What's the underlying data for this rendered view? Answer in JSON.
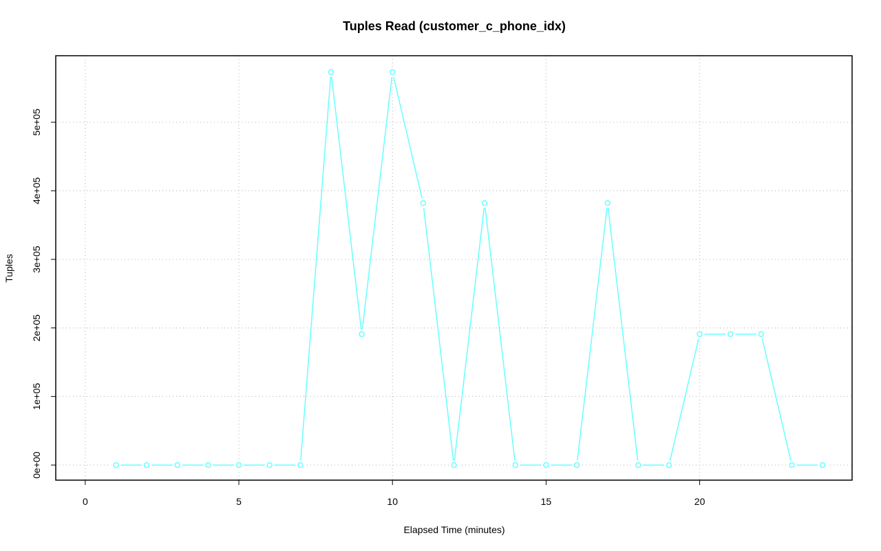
{
  "chart_data": {
    "type": "line",
    "title": "Tuples Read (customer_c_phone_idx)",
    "x_label": "Elapsed Time (minutes)",
    "y_label": "Tuples",
    "x": [
      1,
      2,
      3,
      4,
      5,
      6,
      7,
      8,
      9,
      10,
      11,
      12,
      13,
      14,
      15,
      16,
      17,
      18,
      19,
      20,
      21,
      22,
      23,
      24
    ],
    "series": [
      {
        "color": "#66ffff",
        "values": [
          0,
          0,
          0,
          0,
          0,
          0,
          0,
          573000,
          191000,
          573000,
          382000,
          0,
          382000,
          0,
          0,
          0,
          382000,
          0,
          0,
          191000,
          191000,
          191000,
          0,
          0
        ]
      }
    ],
    "xlim": [
      -0.96,
      24.96
    ],
    "xticks": [
      0,
      5,
      10,
      15,
      20
    ],
    "ylim": [
      -22000,
      597000
    ],
    "yticks": [
      {
        "value": 0,
        "label": "0e+00"
      },
      {
        "value": 100000,
        "label": "1e+05"
      },
      {
        "value": 200000,
        "label": "2e+05"
      },
      {
        "value": 300000,
        "label": "3e+05"
      },
      {
        "value": 400000,
        "label": "4e+05"
      },
      {
        "value": 500000,
        "label": "5e+05"
      }
    ],
    "grid": true
  }
}
